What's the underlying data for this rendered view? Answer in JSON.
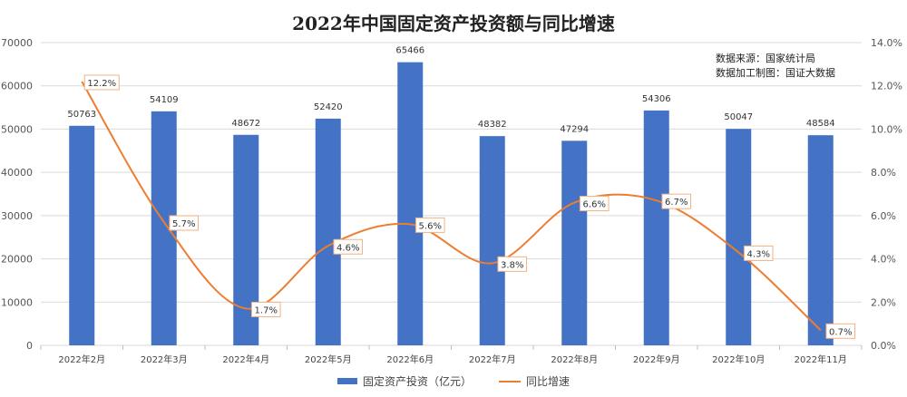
{
  "title": "2022年中国固定资产投资额与同比增速",
  "notes": {
    "source": "数据来源：国家统计局",
    "processing": "数据加工制图：国证大数据"
  },
  "colors": {
    "bar": "#4472C4",
    "line": "#ED7D31"
  },
  "chart_data": {
    "type": "bar",
    "categories": [
      "2022年2月",
      "2022年3月",
      "2022年4月",
      "2022年5月",
      "2022年6月",
      "2022年7月",
      "2022年8月",
      "2022年9月",
      "2022年10月",
      "2022年11月"
    ],
    "series": [
      {
        "name": "固定资产投资（亿元）",
        "type": "bar",
        "axis": "left",
        "values": [
          50763,
          54109,
          48672,
          52420,
          65466,
          48382,
          47294,
          54306,
          50047,
          48584
        ],
        "labels": [
          "50763",
          "54109",
          "48672",
          "52420",
          "65466",
          "48382",
          "47294",
          "54306",
          "50047",
          "48584"
        ]
      },
      {
        "name": "同比增速",
        "type": "line",
        "axis": "right",
        "values": [
          12.2,
          5.7,
          1.7,
          4.6,
          5.6,
          3.8,
          6.6,
          6.7,
          4.3,
          0.7
        ],
        "labels": [
          "12.2%",
          "5.7%",
          "1.7%",
          "4.6%",
          "5.6%",
          "3.8%",
          "6.6%",
          "6.7%",
          "4.3%",
          "0.7%"
        ]
      }
    ],
    "y_left": {
      "min": 0,
      "max": 70000,
      "ticks": [
        "0",
        "10000",
        "20000",
        "30000",
        "40000",
        "50000",
        "60000",
        "70000"
      ]
    },
    "y_right": {
      "min": 0,
      "max": 14,
      "ticks": [
        "0.0%",
        "2.0%",
        "4.0%",
        "6.0%",
        "8.0%",
        "10.0%",
        "12.0%",
        "14.0%"
      ]
    },
    "grid": true,
    "legend": "bottom"
  }
}
